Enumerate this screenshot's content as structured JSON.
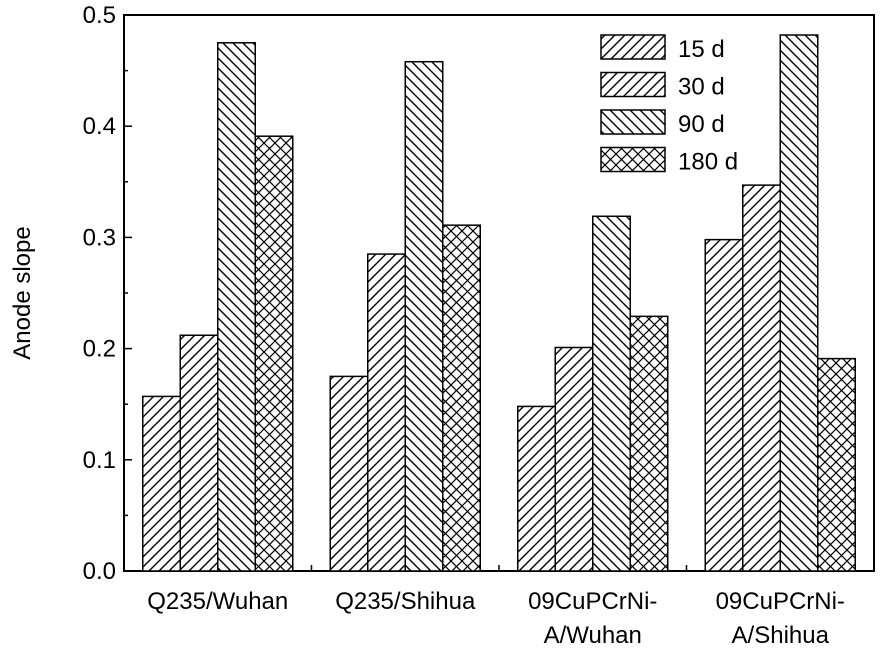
{
  "chart_data": {
    "type": "bar",
    "title": "",
    "xlabel": "",
    "ylabel": "Anode slope",
    "ylim": [
      0.0,
      0.5
    ],
    "yticks": [
      "0.0",
      "0.1",
      "0.2",
      "0.3",
      "0.4",
      "0.5"
    ],
    "categories": [
      [
        "Q235/Wuhan"
      ],
      [
        "Q235/Shihua"
      ],
      [
        "09CuPCrNi-",
        "A/Wuhan"
      ],
      [
        "09CuPCrNi-",
        "A/Shihua"
      ]
    ],
    "series": [
      {
        "name": "15 d",
        "pattern": "hatch-fwd",
        "values": [
          0.157,
          0.175,
          0.148,
          0.298
        ]
      },
      {
        "name": "30 d",
        "pattern": "hatch-fwd",
        "values": [
          0.212,
          0.285,
          0.201,
          0.347
        ]
      },
      {
        "name": "90 d",
        "pattern": "hatch-back",
        "values": [
          0.475,
          0.458,
          0.319,
          0.482
        ]
      },
      {
        "name": "180 d",
        "pattern": "hatch-cross",
        "values": [
          0.391,
          0.311,
          0.229,
          0.191
        ]
      }
    ],
    "legend_position": "top-right",
    "grid": false,
    "bar_fill": "#ffffff",
    "stroke_color": "#000000"
  }
}
